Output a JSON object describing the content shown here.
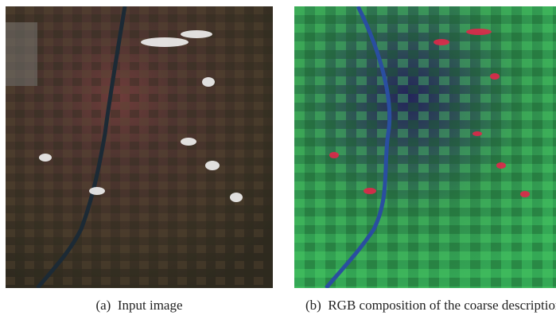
{
  "figure": {
    "panels": [
      {
        "label": "(a)",
        "caption": "Input image"
      },
      {
        "label": "(b)",
        "caption": "RGB composition of the coarse description"
      }
    ]
  }
}
